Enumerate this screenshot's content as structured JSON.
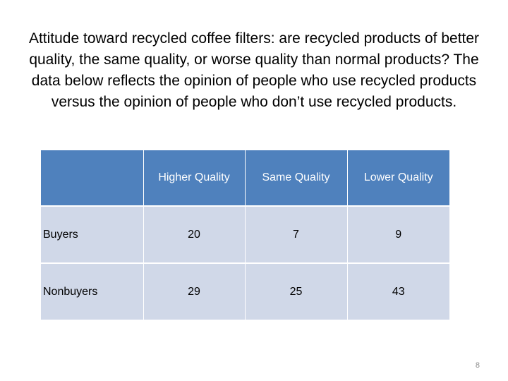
{
  "slide": {
    "intro_text": "Attitude toward recycled coffee filters: are recycled products of better quality, the same quality, or worse quality than normal products? The data below reflects the opinion of people who use recycled products versus the opinion of people who don’t use recycled products.",
    "page_number": "8"
  },
  "table": {
    "corner": "",
    "headers": [
      "Higher Quality",
      "Same Quality",
      "Lower Quality"
    ],
    "rows": [
      {
        "label": "Buyers",
        "values": [
          "20",
          "7",
          "9"
        ]
      },
      {
        "label": "Nonbuyers",
        "values": [
          "29",
          "25",
          "43"
        ]
      }
    ]
  },
  "colors": {
    "header_fill": "#4f81bd",
    "body_fill": "#d0d8e8"
  }
}
